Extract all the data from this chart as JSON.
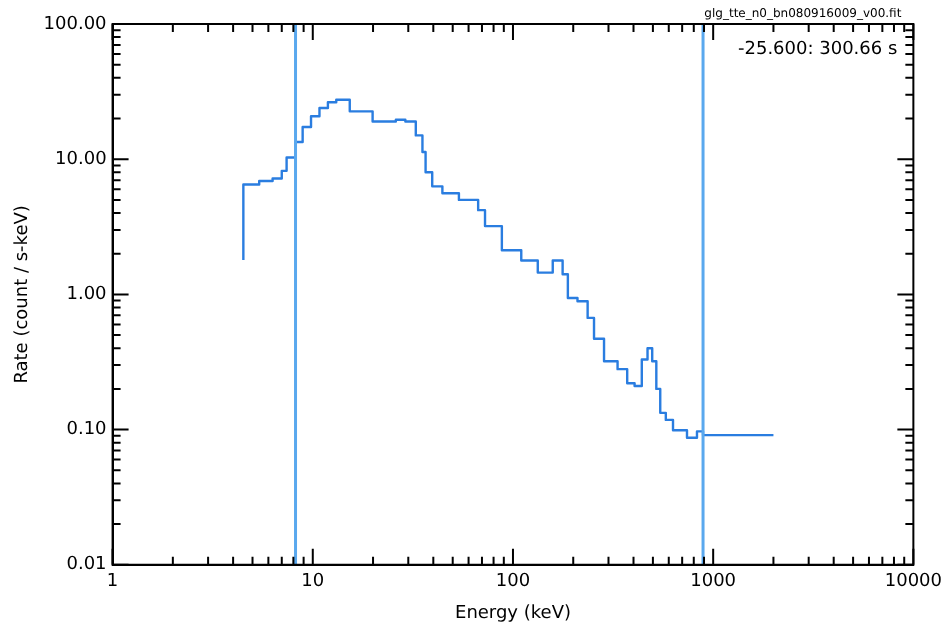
{
  "chart_data": {
    "type": "step",
    "xlabel": "Energy (keV)",
    "ylabel": "Rate (count / s-keV)",
    "annotations": [
      "glg_tte_n0_bn080916009_v00.fit",
      "-25.600: 300.66 s"
    ],
    "log": "xy",
    "grid": false,
    "legend": false,
    "marker": "none",
    "line_style": "solid",
    "xlim": [
      1,
      10000
    ],
    "xticks": [
      1,
      {
        "value": 2,
        "label": null
      },
      {
        "value": 3,
        "label": null
      },
      {
        "value": 4,
        "label": null
      },
      {
        "value": 5,
        "label": null
      },
      {
        "value": 6,
        "label": null
      },
      {
        "value": 7,
        "label": null
      },
      {
        "value": 8,
        "label": null
      },
      {
        "value": 9,
        "label": null
      },
      10,
      {
        "value": 20,
        "label": null
      },
      {
        "value": 30,
        "label": null
      },
      {
        "value": 40,
        "label": null
      },
      {
        "value": 50,
        "label": null
      },
      {
        "value": 60,
        "label": null
      },
      {
        "value": 70,
        "label": null
      },
      {
        "value": 80,
        "label": null
      },
      {
        "value": 90,
        "label": null
      },
      100,
      {
        "value": 200,
        "label": null
      },
      {
        "value": 300,
        "label": null
      },
      {
        "value": 400,
        "label": null
      },
      {
        "value": 500,
        "label": null
      },
      {
        "value": 600,
        "label": null
      },
      {
        "value": 700,
        "label": null
      },
      {
        "value": 800,
        "label": null
      },
      {
        "value": 900,
        "label": null
      },
      1000,
      {
        "value": 2000,
        "label": null
      },
      {
        "value": 3000,
        "label": null
      },
      {
        "value": 4000,
        "label": null
      },
      {
        "value": 5000,
        "label": null
      },
      {
        "value": 6000,
        "label": null
      },
      {
        "value": 7000,
        "label": null
      },
      {
        "value": 8000,
        "label": null
      },
      {
        "value": 9000,
        "label": null
      },
      10000
    ],
    "ylim": [
      0.01,
      100
    ],
    "yticks": [
      {
        "value": 0.01,
        "label": "0.01"
      },
      {
        "value": 0.02,
        "label": null
      },
      {
        "value": 0.03,
        "label": null
      },
      {
        "value": 0.04,
        "label": null
      },
      {
        "value": 0.05,
        "label": null
      },
      {
        "value": 0.06,
        "label": null
      },
      {
        "value": 0.07,
        "label": null
      },
      {
        "value": 0.08,
        "label": null
      },
      {
        "value": 0.09,
        "label": null
      },
      {
        "value": 0.1,
        "label": "0.10"
      },
      {
        "value": 0.2,
        "label": null
      },
      {
        "value": 0.3,
        "label": null
      },
      {
        "value": 0.4,
        "label": null
      },
      {
        "value": 0.5,
        "label": null
      },
      {
        "value": 0.6,
        "label": null
      },
      {
        "value": 0.7,
        "label": null
      },
      {
        "value": 0.8,
        "label": null
      },
      {
        "value": 0.9,
        "label": null
      },
      {
        "value": 1,
        "label": "1.00"
      },
      {
        "value": 2,
        "label": null
      },
      {
        "value": 3,
        "label": null
      },
      {
        "value": 4,
        "label": null
      },
      {
        "value": 5,
        "label": null
      },
      {
        "value": 6,
        "label": null
      },
      {
        "value": 7,
        "label": null
      },
      {
        "value": 8,
        "label": null
      },
      {
        "value": 9,
        "label": null
      },
      {
        "value": 10,
        "label": "10.00"
      },
      {
        "value": 20,
        "label": null
      },
      {
        "value": 30,
        "label": null
      },
      {
        "value": 40,
        "label": null
      },
      {
        "value": 50,
        "label": null
      },
      {
        "value": 60,
        "label": null
      },
      {
        "value": 70,
        "label": null
      },
      {
        "value": 80,
        "label": null
      },
      {
        "value": 90,
        "label": null
      },
      {
        "value": 100,
        "label": "100.00"
      }
    ],
    "ref_lines": [
      {
        "axis": "x",
        "value": 8.2,
        "color": "#5aa8ee"
      },
      {
        "axis": "x",
        "value": 890,
        "color": "#5aa8ee"
      }
    ],
    "series": [
      {
        "color": "#2a7de0",
        "x": [
          4.5,
          5.4,
          6.3,
          7.0,
          7.4,
          8.2,
          8.9,
          9.8,
          10.8,
          11.9,
          13.1,
          15.3,
          19.9,
          26,
          29,
          32.7,
          35.3,
          36.6,
          39.5,
          44.4,
          53.7,
          60,
          67,
          72.5,
          88,
          110,
          133,
          158,
          177,
          188,
          210,
          236,
          254,
          285,
          333,
          372,
          405,
          440,
          470,
          496,
          520,
          544,
          580,
          630,
          740,
          830,
          890,
          930,
          2000
        ],
        "values": [
          1.8,
          6.5,
          6.9,
          7.2,
          8.2,
          10.3,
          13.4,
          17.3,
          20.8,
          23.9,
          26.4,
          27.5,
          22.6,
          19.0,
          19.6,
          19.0,
          15,
          11.3,
          8.0,
          6.3,
          5.6,
          5.0,
          5.0,
          4.2,
          3.2,
          2.12,
          1.78,
          1.45,
          1.78,
          1.41,
          0.94,
          0.89,
          0.67,
          0.47,
          0.32,
          0.28,
          0.22,
          0.21,
          0.33,
          0.4,
          0.32,
          0.2,
          0.133,
          0.118,
          0.099,
          0.087,
          0.097,
          0.091,
          0.091
        ]
      }
    ]
  }
}
